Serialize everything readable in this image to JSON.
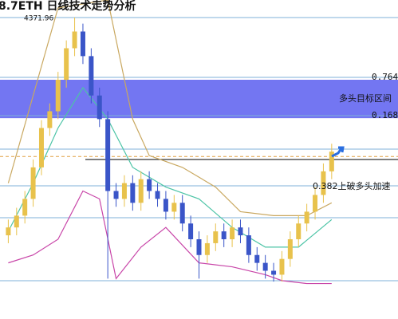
{
  "chart_data": {
    "type": "candlestick",
    "title": "8.7ETH 日线技术走势分析",
    "peak_label": "4371.96",
    "xlim": [
      0,
      48
    ],
    "ylim": [
      1310,
      4550
    ],
    "up_color": "#e8c24c",
    "down_color": "#3a55c8",
    "ohlc": [
      [
        2160,
        2320,
        2080,
        2240
      ],
      [
        2240,
        2440,
        2160,
        2360
      ],
      [
        2360,
        2610,
        2280,
        2530
      ],
      [
        2530,
        2930,
        2450,
        2850
      ],
      [
        2850,
        3330,
        2770,
        3250
      ],
      [
        3250,
        3500,
        3170,
        3420
      ],
      [
        3420,
        3820,
        3340,
        3740
      ],
      [
        3740,
        4140,
        3660,
        4060
      ],
      [
        4060,
        4372,
        3980,
        4230
      ],
      [
        4230,
        4310,
        3900,
        3980
      ],
      [
        3980,
        4060,
        3500,
        3580
      ],
      [
        3580,
        3660,
        3260,
        3340
      ],
      [
        3340,
        3420,
        1720,
        2610
      ],
      [
        2610,
        2690,
        2450,
        2530
      ],
      [
        2530,
        2770,
        2450,
        2690
      ],
      [
        2690,
        2770,
        2410,
        2490
      ],
      [
        2490,
        2810,
        2410,
        2730
      ],
      [
        2730,
        2810,
        2530,
        2610
      ],
      [
        2610,
        2690,
        2450,
        2530
      ],
      [
        2530,
        2610,
        2320,
        2400
      ],
      [
        2400,
        2570,
        2320,
        2490
      ],
      [
        2490,
        2570,
        2200,
        2280
      ],
      [
        2280,
        2360,
        2040,
        2120
      ],
      [
        2120,
        2200,
        1720,
        1960
      ],
      [
        1960,
        2160,
        1880,
        2080
      ],
      [
        2080,
        2280,
        2000,
        2200
      ],
      [
        2200,
        2280,
        2040,
        2120
      ],
      [
        2120,
        2320,
        2040,
        2240
      ],
      [
        2240,
        2320,
        2080,
        2160
      ],
      [
        2160,
        2240,
        1880,
        1960
      ],
      [
        1960,
        2040,
        1800,
        1880
      ],
      [
        1880,
        1960,
        1720,
        1800
      ],
      [
        1800,
        1880,
        1690,
        1760
      ],
      [
        1760,
        2000,
        1690,
        1920
      ],
      [
        1920,
        2200,
        1840,
        2120
      ],
      [
        2120,
        2360,
        2040,
        2280
      ],
      [
        2280,
        2480,
        2200,
        2400
      ],
      [
        2400,
        2650,
        2320,
        2570
      ],
      [
        2570,
        2890,
        2490,
        2810
      ],
      [
        2810,
        3090,
        2730,
        3010
      ]
    ],
    "series": [
      {
        "color": "#c9a860",
        "x": [
          1,
          4,
          7,
          13,
          16,
          18,
          22,
          26,
          29,
          33,
          37,
          40
        ],
        "values": [
          2690,
          3580,
          4470,
          4550,
          3340,
          2970,
          2850,
          2650,
          2400,
          2360,
          2360,
          2490
        ]
      },
      {
        "color": "#4cc4a6",
        "x": [
          1,
          4,
          7,
          10,
          13,
          16,
          20,
          24,
          28,
          32,
          36,
          40
        ],
        "values": [
          2200,
          2690,
          3250,
          3660,
          3340,
          2850,
          2650,
          2530,
          2240,
          2040,
          2040,
          2320
        ]
      },
      {
        "color": "#c845a8",
        "x": [
          1,
          4,
          7,
          10,
          12,
          14,
          17,
          20,
          24,
          28,
          32,
          34,
          37,
          40
        ],
        "values": [
          1880,
          1960,
          2120,
          2610,
          2530,
          1720,
          2040,
          2240,
          1880,
          1840,
          1760,
          1700,
          1670,
          1670
        ]
      }
    ],
    "levels": [
      {
        "value": 4372,
        "color": "#7fb0d8"
      },
      {
        "value": 3764,
        "color": "#7fb0d8"
      },
      {
        "value": 3375,
        "color": "#7fb0d8"
      },
      {
        "value": 3035,
        "color": "#7fb0d8"
      },
      {
        "value": 2960,
        "color": "#e0a040"
      },
      {
        "value": 2930,
        "color": "#333333"
      },
      {
        "value": 2663,
        "color": "#7fb0d8"
      },
      {
        "value": 2339,
        "color": "#7fb0d8"
      },
      {
        "value": 1699,
        "color": "#7fb0d8"
      }
    ],
    "zone": {
      "label": "多头目标区间",
      "range": [
        3350,
        3740
      ],
      "color": "#5a5ef0"
    },
    "level_labels": [
      "0.764",
      "0.168",
      "0.382上破多头加速"
    ]
  }
}
